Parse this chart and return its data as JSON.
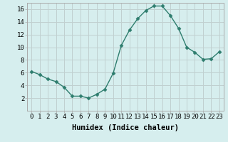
{
  "x": [
    0,
    1,
    2,
    3,
    4,
    5,
    6,
    7,
    8,
    9,
    10,
    11,
    12,
    13,
    14,
    15,
    16,
    17,
    18,
    19,
    20,
    21,
    22,
    23
  ],
  "y": [
    6.2,
    5.7,
    5.0,
    4.6,
    3.7,
    2.3,
    2.3,
    2.0,
    2.6,
    3.4,
    5.9,
    10.3,
    12.7,
    14.5,
    15.8,
    16.5,
    16.5,
    15.0,
    13.0,
    10.0,
    9.2,
    8.1,
    8.2,
    9.3
  ],
  "line_color": "#2e7d6e",
  "marker": "D",
  "marker_size": 2.5,
  "bg_color": "#d6eeee",
  "grid_color": "#c0d0d0",
  "xlabel": "Humidex (Indice chaleur)",
  "ylim": [
    0,
    17
  ],
  "xlim": [
    -0.5,
    23.5
  ],
  "yticks": [
    2,
    4,
    6,
    8,
    10,
    12,
    14,
    16
  ],
  "xticks": [
    0,
    1,
    2,
    3,
    4,
    5,
    6,
    7,
    8,
    9,
    10,
    11,
    12,
    13,
    14,
    15,
    16,
    17,
    18,
    19,
    20,
    21,
    22,
    23
  ],
  "xtick_labels": [
    "0",
    "1",
    "2",
    "3",
    "4",
    "5",
    "6",
    "7",
    "8",
    "9",
    "10",
    "11",
    "12",
    "13",
    "14",
    "15",
    "16",
    "17",
    "18",
    "19",
    "20",
    "21",
    "22",
    "23"
  ],
  "tick_fontsize": 6.5,
  "xlabel_fontsize": 7.5,
  "linewidth": 1.0
}
